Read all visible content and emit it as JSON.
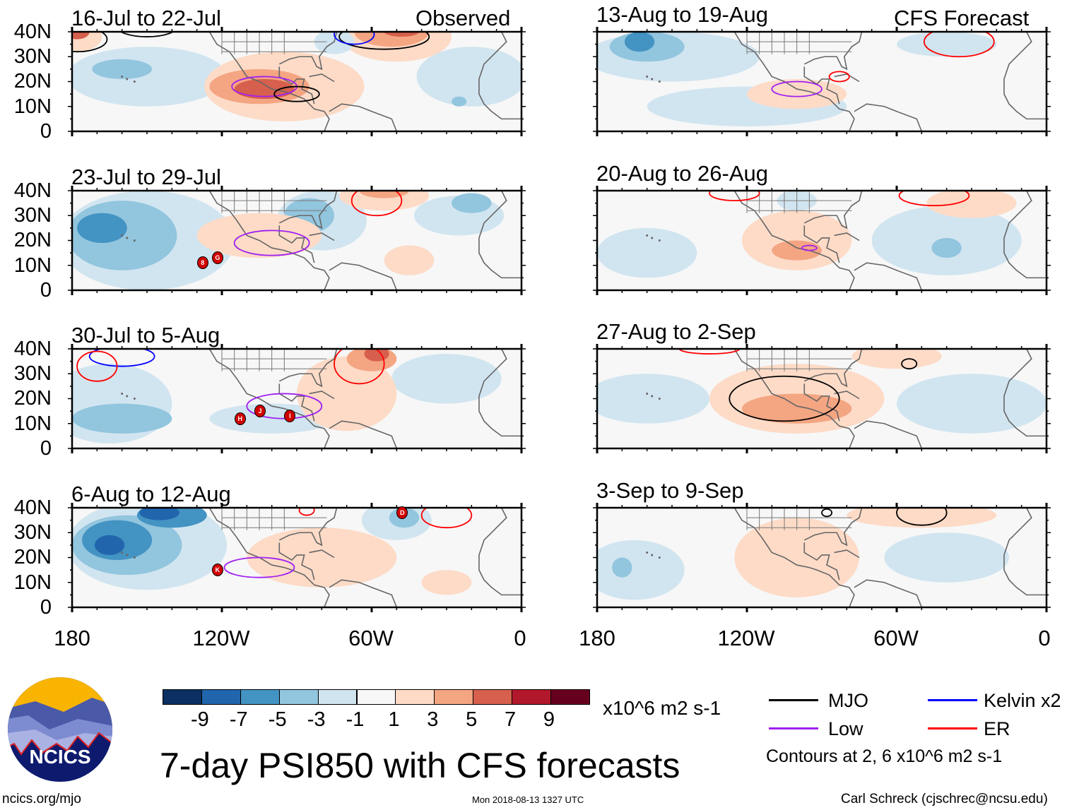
{
  "figure": {
    "title": "7-day PSI850 with CFS forecasts",
    "observed_label": "Observed",
    "forecast_label": "CFS Forecast",
    "lat_labels": [
      "40N",
      "30N",
      "20N",
      "10N",
      "0"
    ],
    "lon_labels": [
      "180",
      "120W",
      "60W",
      "0"
    ],
    "panels_observed": [
      {
        "title": "16-Jul to 22-Jul",
        "storms": []
      },
      {
        "title": "23-Jul to 29-Jul",
        "storms": [
          "8",
          "G"
        ]
      },
      {
        "title": "30-Jul to 5-Aug",
        "storms": [
          "H",
          "J",
          "I"
        ]
      },
      {
        "title": "6-Aug to 12-Aug",
        "storms": [
          "K",
          "D"
        ]
      }
    ],
    "panels_forecast": [
      {
        "title": "13-Aug to 19-Aug"
      },
      {
        "title": "20-Aug to 26-Aug"
      },
      {
        "title": "27-Aug to 2-Sep"
      },
      {
        "title": "3-Sep to 9-Sep"
      }
    ]
  },
  "colorbar": {
    "labels": [
      "-9",
      "-7",
      "-5",
      "-3",
      "-1",
      "1",
      "3",
      "5",
      "7",
      "9"
    ],
    "colors": [
      "#0b2f60",
      "#2166ac",
      "#4393c3",
      "#92c5de",
      "#d1e5f0",
      "#f7f7f7",
      "#fddbc7",
      "#f4a582",
      "#d6604d",
      "#b2182b",
      "#67001f"
    ],
    "units": "x10^6 m2 s-1"
  },
  "legend": {
    "items": [
      {
        "label": "MJO",
        "color": "#000000"
      },
      {
        "label": "Kelvin x2",
        "color": "#0000ff"
      },
      {
        "label": "Low",
        "color": "#a020f0"
      },
      {
        "label": "ER",
        "color": "#ff0000"
      }
    ],
    "contours_note": "Contours at 2, 6 x10^6 m2 s-1"
  },
  "logo": {
    "text": "NCICS"
  },
  "footer": {
    "url": "ncics.org/mjo",
    "timestamp": "Mon 2018-08-13 1327 UTC",
    "author": "Carl Schreck (cjschrec@ncsu.edu)"
  }
}
